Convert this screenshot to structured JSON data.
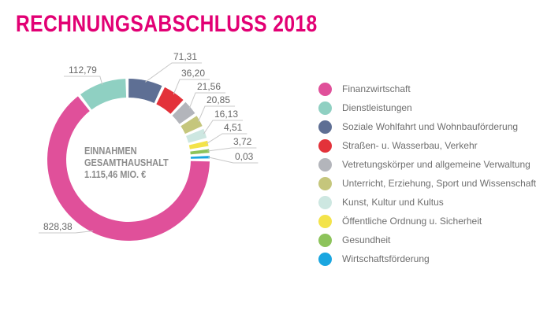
{
  "title": "RECHNUNGSABSCHLUSS 2018",
  "chart_data": {
    "type": "pie",
    "variant": "donut",
    "title": "",
    "center_label": [
      "EINNAHMEN",
      "GESAMTHAUSHALT",
      "1.115,46 MIO. €"
    ],
    "legend_position": "right",
    "categories": [
      "Finanzwirtschaft",
      "Dienstleistungen",
      "Soziale Wohlfahrt und Wohnbauförderung",
      "Straßen- u. Wasserbau, Verkehr",
      "Vetretungskörper und allgemeine Verwaltung",
      "Unterricht, Erziehung, Sport und Wissenschaft",
      "Kunst, Kultur und Kultus",
      "Öffentliche Ordnung u. Sicherheit",
      "Gesundheit",
      "Wirtschaftsförderung"
    ],
    "values": [
      828.38,
      112.79,
      71.31,
      36.2,
      21.56,
      20.85,
      16.13,
      4.51,
      3.72,
      0.03
    ],
    "value_labels": [
      "828,38",
      "112,79",
      "71,31",
      "36,20",
      "21,56",
      "20,85",
      "16,13",
      "4,51",
      "3,72",
      "0,03"
    ],
    "colors": [
      "#e0509a",
      "#8fd0c2",
      "#5e6f94",
      "#e3323a",
      "#b3b5bb",
      "#c5c67c",
      "#cde7e1",
      "#f3e34a",
      "#8dc35b",
      "#1aa6e0"
    ]
  }
}
